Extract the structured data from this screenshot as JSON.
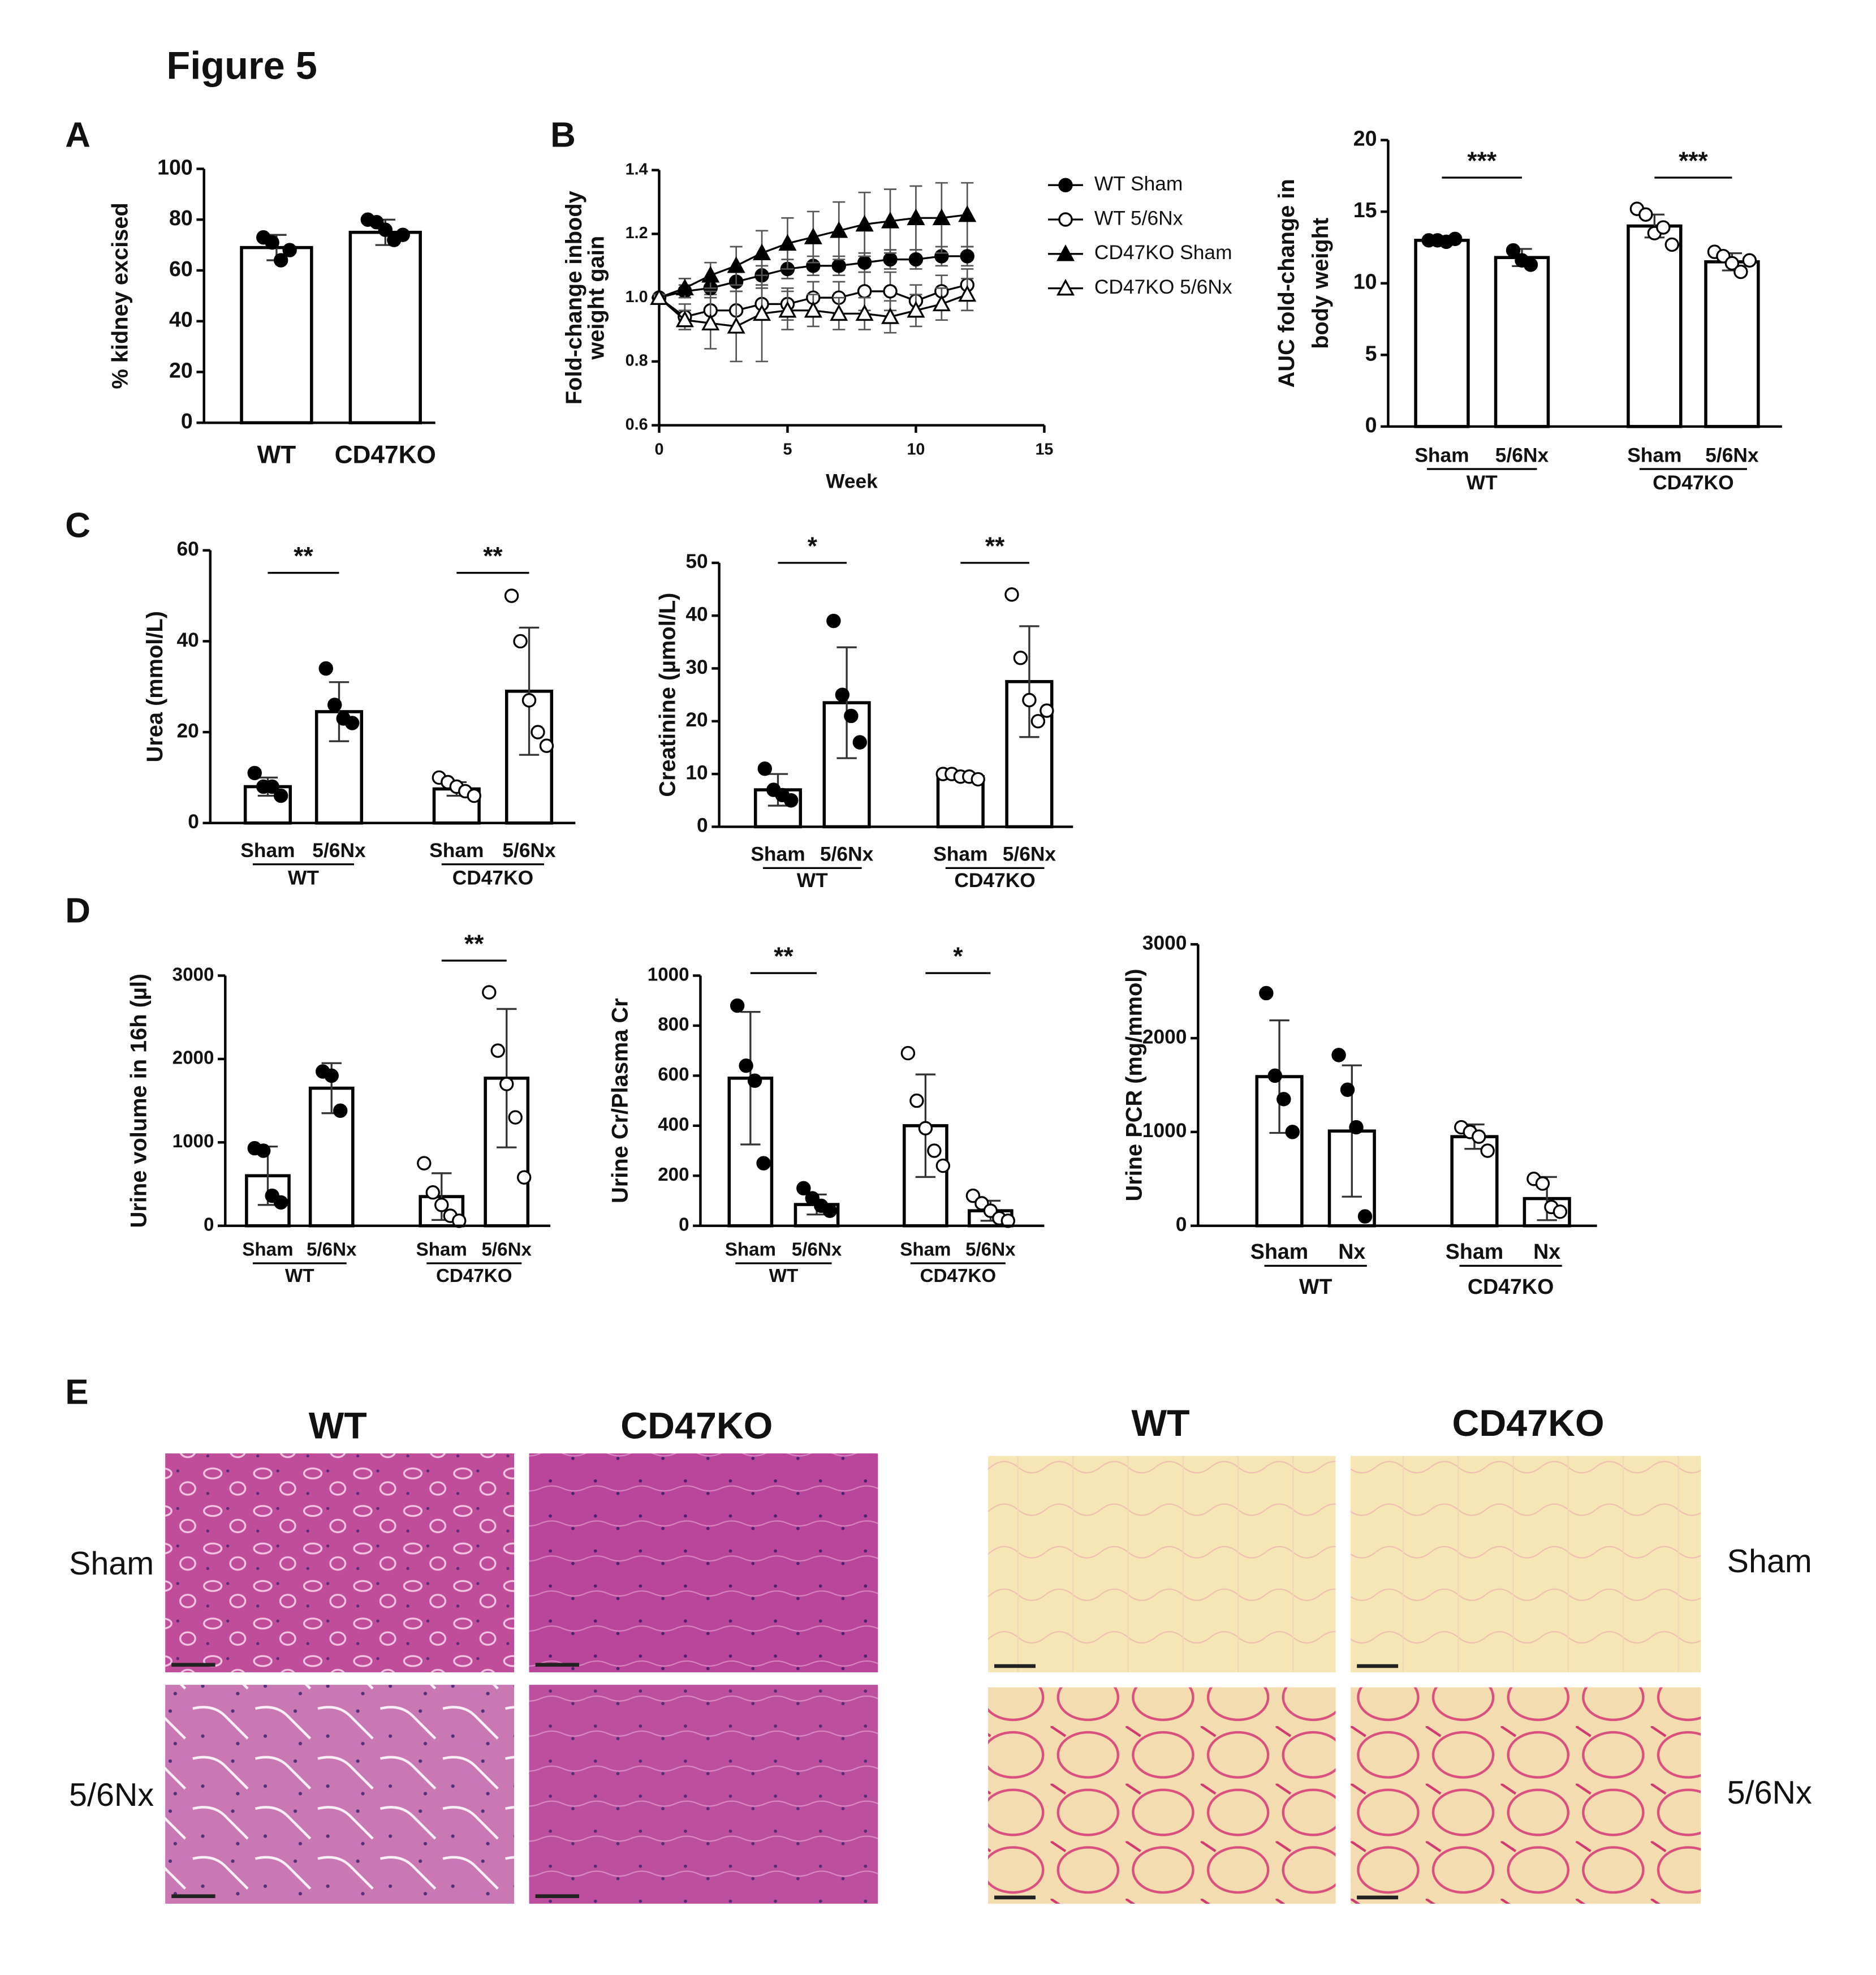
{
  "figure": {
    "title": "Figure 5",
    "panels": [
      "A",
      "B",
      "C",
      "D",
      "E"
    ]
  },
  "histology": {
    "columns_left": [
      "WT",
      "CD47KO"
    ],
    "columns_right": [
      "WT",
      "CD47KO"
    ],
    "rows_left": [
      "Sham",
      "5/6Nx"
    ],
    "rows_right": [
      "Sham",
      "5/6Nx"
    ]
  },
  "chart_data": [
    {
      "type": "bar",
      "ylabel": "% kidney excised",
      "categories": [
        "WT",
        "CD47KO"
      ],
      "values": [
        69,
        75
      ],
      "errors": [
        5,
        5
      ],
      "points": [
        [
          73,
          71,
          64,
          68
        ],
        [
          80,
          79,
          76,
          72,
          74
        ]
      ],
      "point_fill": [
        "#000",
        "#000"
      ],
      "ylim": [
        0,
        100
      ],
      "yticks": [
        0,
        20,
        40,
        60,
        80,
        100
      ]
    },
    {
      "type": "line",
      "xlabel": "Week",
      "ylabel": [
        "Fold-change inbody",
        "weight gain"
      ],
      "x": [
        0,
        1,
        2,
        3,
        4,
        5,
        6,
        7,
        8,
        9,
        10,
        11,
        12
      ],
      "xlim": [
        0,
        15
      ],
      "xticks": [
        0,
        5,
        10,
        15
      ],
      "ylim": [
        0.6,
        1.4
      ],
      "yticks": [
        0.6,
        0.8,
        {
          "value": 1,
          "label": "1.0"
        },
        1.2,
        1.4
      ],
      "series": [
        {
          "name": "WT Sham",
          "marker": "circle",
          "color": "#000",
          "fill": "#000",
          "values": [
            1.0,
            1.02,
            1.03,
            1.05,
            1.07,
            1.09,
            1.1,
            1.1,
            1.11,
            1.12,
            1.12,
            1.13,
            1.13
          ],
          "errors": [
            0.01,
            0.02,
            0.02,
            0.03,
            0.03,
            0.03,
            0.03,
            0.03,
            0.03,
            0.03,
            0.03,
            0.03,
            0.03
          ]
        },
        {
          "name": "WT 5/6Nx",
          "marker": "circle",
          "color": "#000",
          "fill": "#fff",
          "values": [
            1.0,
            0.94,
            0.96,
            0.96,
            0.98,
            0.98,
            1.0,
            1.0,
            1.02,
            1.02,
            0.99,
            1.02,
            1.04
          ],
          "errors": [
            0.01,
            0.04,
            0.06,
            0.06,
            0.05,
            0.05,
            0.05,
            0.05,
            0.06,
            0.06,
            0.05,
            0.05,
            0.05
          ]
        },
        {
          "name": "CD47KO Sham",
          "marker": "triangle",
          "color": "#000",
          "fill": "#000",
          "values": [
            1.0,
            1.03,
            1.07,
            1.1,
            1.14,
            1.17,
            1.19,
            1.21,
            1.23,
            1.24,
            1.25,
            1.25,
            1.26
          ],
          "errors": [
            0.01,
            0.03,
            0.04,
            0.06,
            0.07,
            0.08,
            0.08,
            0.09,
            0.1,
            0.1,
            0.1,
            0.11,
            0.1
          ]
        },
        {
          "name": "CD47KO 5/6Nx",
          "marker": "triangle",
          "color": "#000",
          "fill": "#fff",
          "values": [
            1.0,
            0.93,
            0.92,
            0.91,
            0.95,
            0.96,
            0.96,
            0.95,
            0.95,
            0.94,
            0.96,
            0.98,
            1.01
          ],
          "errors": [
            0.01,
            0.03,
            0.08,
            0.11,
            0.15,
            0.06,
            0.05,
            0.05,
            0.05,
            0.05,
            0.05,
            0.05,
            0.05
          ]
        }
      ]
    },
    {
      "type": "bar",
      "ylabel": [
        "AUC fold-change in",
        "body weight"
      ],
      "categories": [
        "Sham",
        "5/6Nx",
        "Sham",
        "5/6Nx"
      ],
      "groups": [
        "WT",
        "CD47KO"
      ],
      "significance": [
        "***",
        "***"
      ],
      "values": [
        13,
        11.8,
        14,
        11.5
      ],
      "errors": [
        0.2,
        0.6,
        0.8,
        0.6
      ],
      "points": [
        [
          13,
          13,
          12.9,
          13.1
        ],
        [
          12.3,
          11.6,
          11.3
        ],
        [
          15.2,
          14.8,
          13.5,
          13.9,
          12.7
        ],
        [
          12.2,
          11.9,
          11.4,
          10.8,
          11.6
        ]
      ],
      "point_fill": [
        "#000",
        "#000",
        "#fff",
        "#fff"
      ],
      "ylim": [
        0,
        20
      ],
      "yticks": [
        0,
        5,
        10,
        15,
        20
      ]
    },
    {
      "type": "bar",
      "ylabel": "Urea (mmol/L)",
      "categories": [
        "Sham",
        "5/6Nx",
        "Sham",
        "5/6Nx"
      ],
      "groups": [
        "WT",
        "CD47KO"
      ],
      "significance": [
        "**",
        "**"
      ],
      "values": [
        8,
        24.5,
        7.5,
        29
      ],
      "errors": [
        2,
        6.5,
        1.5,
        14
      ],
      "points": [
        [
          11,
          8,
          8,
          6
        ],
        [
          34,
          26,
          23,
          22
        ],
        [
          10,
          9,
          8,
          7,
          6
        ],
        [
          50,
          40,
          27,
          20,
          17
        ]
      ],
      "point_fill": [
        "#000",
        "#000",
        "#fff",
        "#fff"
      ],
      "ylim": [
        0,
        60
      ],
      "yticks": [
        0,
        20,
        40,
        60
      ]
    },
    {
      "type": "bar",
      "ylabel": "Creatinine (µmol/L)",
      "categories": [
        "Sham",
        "5/6Nx",
        "Sham",
        "5/6Nx"
      ],
      "groups": [
        "WT",
        "CD47KO"
      ],
      "significance": [
        "*",
        "**"
      ],
      "values": [
        7,
        23.5,
        9.5,
        27.5
      ],
      "errors": [
        3,
        10.5,
        0.5,
        10.5
      ],
      "points": [
        [
          11,
          7,
          6,
          5
        ],
        [
          39,
          25,
          21,
          16
        ],
        [
          10,
          10,
          9.5,
          9.5,
          9
        ],
        [
          44,
          32,
          24,
          20,
          22
        ]
      ],
      "point_fill": [
        "#000",
        "#000",
        "#fff",
        "#fff"
      ],
      "ylim": [
        0,
        50
      ],
      "yticks": [
        0,
        10,
        20,
        30,
        40,
        50
      ]
    },
    {
      "type": "bar",
      "ylabel": "Urine volume in 16h (µl)",
      "categories": [
        "Sham",
        "5/6Nx",
        "Sham",
        "5/6Nx"
      ],
      "groups": [
        "WT",
        "CD47KO"
      ],
      "significance": [
        null,
        "**"
      ],
      "values": [
        600,
        1650,
        350,
        1770
      ],
      "errors": [
        350,
        300,
        280,
        830
      ],
      "points": [
        [
          930,
          900,
          360,
          280
        ],
        [
          1850,
          1800,
          1380
        ],
        [
          750,
          400,
          250,
          120,
          60
        ],
        [
          2800,
          2100,
          1700,
          1300,
          580
        ]
      ],
      "point_fill": [
        "#000",
        "#000",
        "#fff",
        "#fff"
      ],
      "ylim": [
        0,
        3000
      ],
      "yticks": [
        0,
        1000,
        2000,
        3000
      ]
    },
    {
      "type": "bar",
      "ylabel": "Urine Cr/Plasma Cr",
      "categories": [
        "Sham",
        "5/6Nx",
        "Sham",
        "5/6Nx"
      ],
      "groups": [
        "WT",
        "CD47KO"
      ],
      "significance": [
        "**",
        "*"
      ],
      "values": [
        590,
        85,
        400,
        60
      ],
      "errors": [
        265,
        40,
        205,
        40
      ],
      "points": [
        [
          880,
          640,
          580,
          250
        ],
        [
          150,
          110,
          80,
          60
        ],
        [
          690,
          500,
          390,
          300,
          240
        ],
        [
          120,
          90,
          60,
          30,
          20
        ]
      ],
      "point_fill": [
        "#000",
        "#000",
        "#fff",
        "#fff"
      ],
      "ylim": [
        0,
        1000
      ],
      "yticks": [
        0,
        200,
        400,
        600,
        800,
        1000
      ]
    },
    {
      "type": "bar",
      "ylabel": "Urine PCR (mg/mmol)",
      "categories": [
        "Sham",
        "Nx",
        "Sham",
        "Nx"
      ],
      "groups": [
        "WT",
        "CD47KO"
      ],
      "values": [
        1590,
        1010,
        950,
        290
      ],
      "errors": [
        600,
        700,
        130,
        230
      ],
      "points": [
        [
          2480,
          1600,
          1350,
          1000
        ],
        [
          1820,
          1450,
          1050,
          100
        ],
        [
          1050,
          1000,
          950,
          800
        ],
        [
          500,
          450,
          200,
          150
        ]
      ],
      "point_fill": [
        "#000",
        "#000",
        "#fff",
        "#fff"
      ],
      "ylim": [
        0,
        3000
      ],
      "yticks": [
        0,
        1000,
        2000,
        3000
      ]
    }
  ]
}
